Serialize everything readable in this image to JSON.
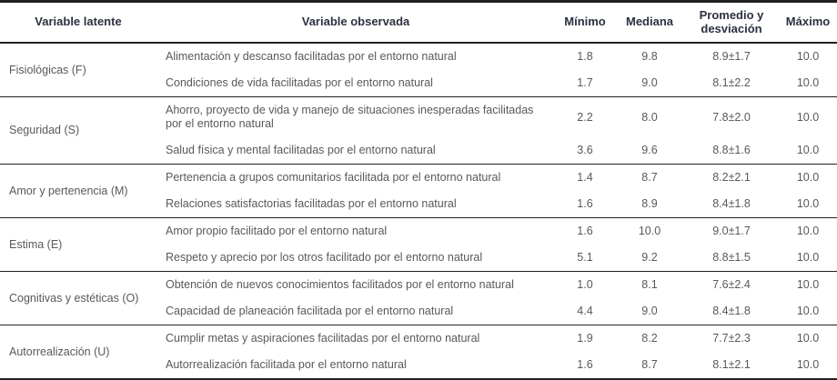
{
  "page": {
    "background": "#ffffff"
  },
  "colors": {
    "rule_dark": "#231f20",
    "header_text": "#2c3140",
    "body_text": "#58595b"
  },
  "table": {
    "column_headers": [
      "Variable latente",
      "Variable observada",
      "Mínimo",
      "Mediana",
      "Promedio y desviación",
      "Máximo"
    ],
    "groups": [
      {
        "latent": "Fisiológicas (F)",
        "rows": [
          {
            "observed": "Alimentación y descanso facilitadas por el entorno natural",
            "min": "1.8",
            "median": "9.8",
            "mean_sd": "8.9±1.7",
            "max": "10.0"
          },
          {
            "observed": "Condiciones de vida facilitadas por el entorno natural",
            "min": "1.7",
            "median": "9.0",
            "mean_sd": "8.1±2.2",
            "max": "10.0"
          }
        ]
      },
      {
        "latent": "Seguridad (S)",
        "rows": [
          {
            "observed": "Ahorro, proyecto de vida y manejo de situaciones inesperadas facilitadas por el entorno natural",
            "min": "2.2",
            "median": "8.0",
            "mean_sd": "7.8±2.0",
            "max": "10.0"
          },
          {
            "observed": "Salud física y mental facilitadas por el entorno natural",
            "min": "3.6",
            "median": "9.6",
            "mean_sd": "8.8±1.6",
            "max": "10.0"
          }
        ]
      },
      {
        "latent": "Amor y pertenencia (M)",
        "rows": [
          {
            "observed": "Pertenencia a grupos comunitarios facilitada por el entorno natural",
            "min": "1.4",
            "median": "8.7",
            "mean_sd": "8.2±2.1",
            "max": "10.0"
          },
          {
            "observed": "Relaciones satisfactorias facilitadas por el entorno natural",
            "min": "1.6",
            "median": "8.9",
            "mean_sd": "8.4±1.8",
            "max": "10.0"
          }
        ]
      },
      {
        "latent": "Estima (E)",
        "rows": [
          {
            "observed": "Amor propio facilitado por el entorno natural",
            "min": "1.6",
            "median": "10.0",
            "mean_sd": "9.0±1.7",
            "max": "10.0"
          },
          {
            "observed": "Respeto y aprecio por los otros facilitado por el entorno natural",
            "min": "5.1",
            "median": "9.2",
            "mean_sd": "8.8±1.5",
            "max": "10.0"
          }
        ]
      },
      {
        "latent": "Cognitivas y estéticas (O)",
        "rows": [
          {
            "observed": "Obtención de nuevos conocimientos facilitados por el entorno natural",
            "min": "1.0",
            "median": "8.1",
            "mean_sd": "7.6±2.4",
            "max": "10.0"
          },
          {
            "observed": "Capacidad de planeación facilitada por el entorno natural",
            "min": "4.4",
            "median": "9.0",
            "mean_sd": "8.4±1.8",
            "max": "10.0"
          }
        ]
      },
      {
        "latent": "Autorrealización (U)",
        "rows": [
          {
            "observed": "Cumplir metas y aspiraciones facilitadas por el entorno natural",
            "min": "1.9",
            "median": "8.2",
            "mean_sd": "7.7±2.3",
            "max": "10.0"
          },
          {
            "observed": "Autorrealización facilitada por el entorno natural",
            "min": "1.6",
            "median": "8.7",
            "mean_sd": "8.1±2.1",
            "max": "10.0"
          }
        ]
      }
    ]
  }
}
